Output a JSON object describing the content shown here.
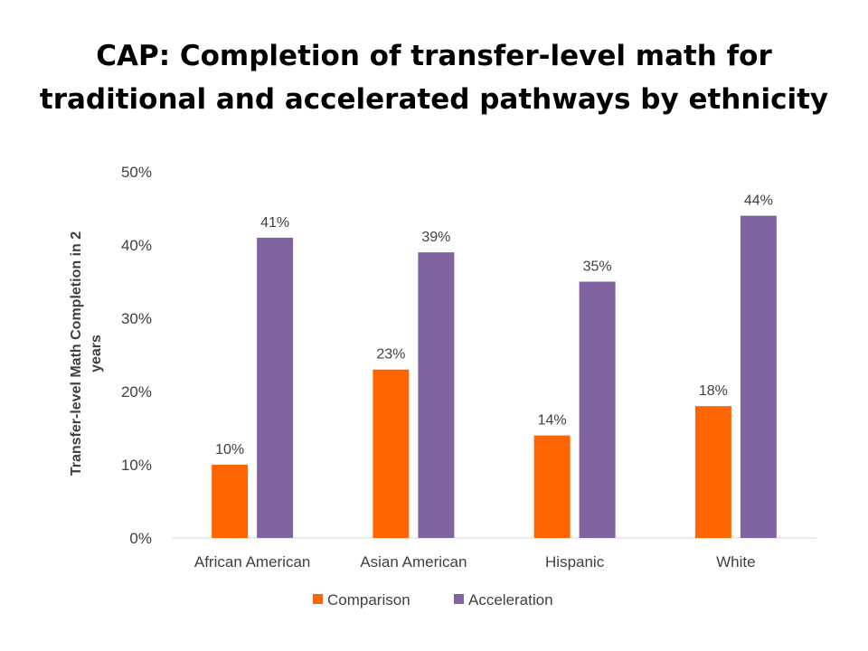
{
  "chart_data": {
    "type": "bar",
    "title_lines": [
      "CAP: Completion of transfer-level math for",
      "traditional and accelerated pathways by ethnicity"
    ],
    "ylabel_lines": [
      "Transfer-level Math Completion in 2",
      "years"
    ],
    "xlabel": "",
    "categories": [
      "African American",
      "Asian American",
      "Hispanic",
      "White"
    ],
    "series": [
      {
        "name": "Comparison",
        "color": "#FF6600",
        "values": [
          10,
          23,
          14,
          18
        ],
        "labels": [
          "10%",
          "23%",
          "14%",
          "18%"
        ]
      },
      {
        "name": "Acceleration",
        "color": "#8064A2",
        "values": [
          41,
          39,
          35,
          44
        ],
        "labels": [
          "41%",
          "39%",
          "35%",
          "44%"
        ]
      }
    ],
    "ylim": [
      0,
      50
    ],
    "yticks": [
      0,
      10,
      20,
      30,
      40,
      50
    ],
    "ytick_labels": [
      "0%",
      "10%",
      "20%",
      "30%",
      "40%",
      "50%"
    ],
    "grid": false,
    "legend_position": "bottom"
  }
}
